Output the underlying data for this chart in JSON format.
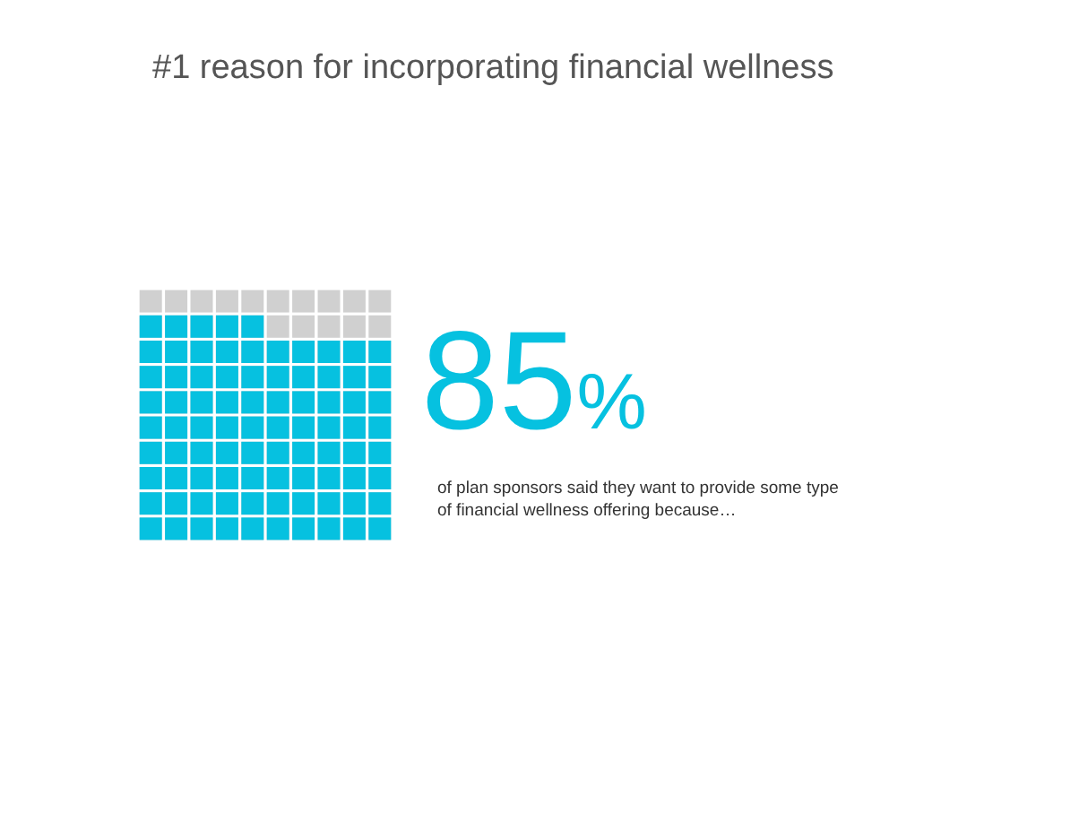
{
  "chart_data": {
    "type": "other",
    "title": "#1 reason for incorporating financial wellness",
    "categories": [
      null
    ],
    "values": [
      85
    ],
    "colors": [
      "#06c1e0"
    ],
    "value_labels": [
      "85%"
    ],
    "annotations": [
      "of plan sponsors said they want to provide some type\nof financial wellness offering because…"
    ]
  }
}
